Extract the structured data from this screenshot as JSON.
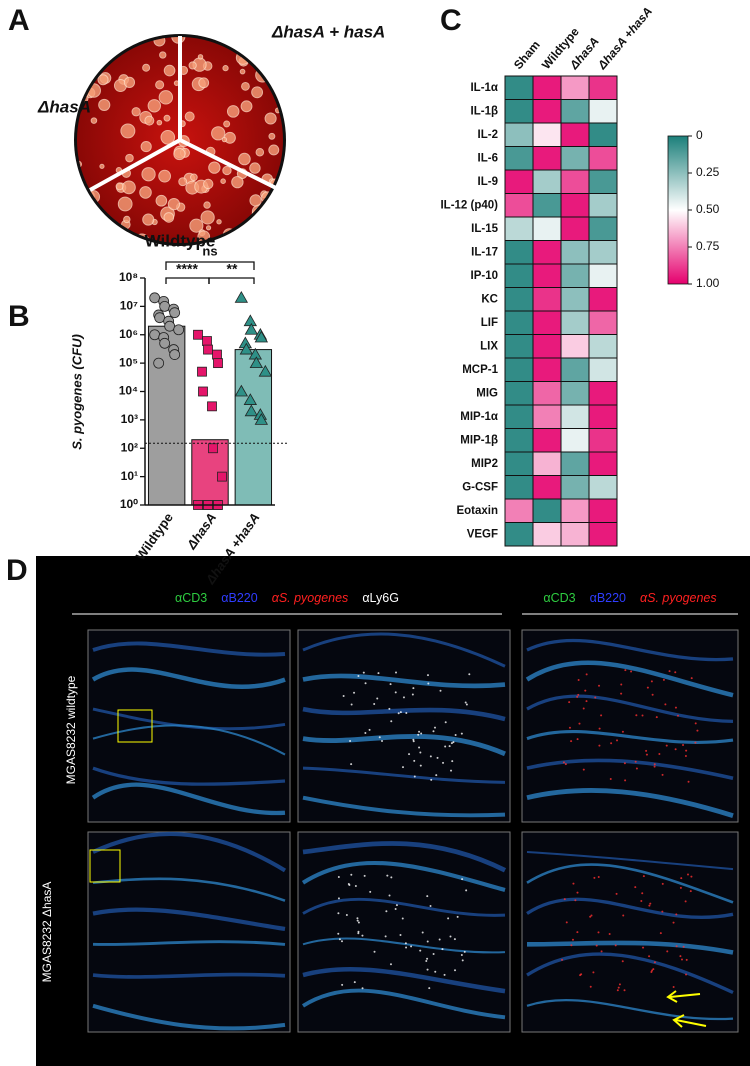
{
  "panels": {
    "a": "A",
    "b": "B",
    "c": "C",
    "d": "D"
  },
  "plate": {
    "labels": [
      "ΔhasA",
      "ΔhasA + hasA",
      "Wildtype"
    ]
  },
  "chart_data": [
    {
      "type": "bar",
      "ylabel": "S. pyogenes (CFU)",
      "categories": [
        "Wildtype",
        "ΔhasA",
        "ΔhasA +hasA"
      ],
      "values": [
        2000000,
        200,
        300000
      ],
      "colors": [
        "#9e9e9e",
        "#e8437f",
        "#7fbcb6"
      ],
      "point_colors": [
        "#9a9a9a",
        "#e5156a",
        "#2e9087"
      ],
      "markers": [
        "circle",
        "square",
        "triangle"
      ],
      "points": [
        [
          20000000,
          15000000,
          10000000,
          8000000,
          6000000,
          5000000,
          4000000,
          3000000,
          2000000,
          1500000,
          1000000,
          800000,
          500000,
          300000,
          200000,
          100000
        ],
        [
          1000000,
          600000,
          300000,
          200000,
          100000,
          50000,
          10000,
          3000,
          100,
          10,
          1,
          1,
          1,
          1,
          1
        ],
        [
          20000000,
          3000000,
          1500000,
          1000000,
          800000,
          500000,
          300000,
          200000,
          100000,
          50000,
          10000,
          5000,
          2000,
          1500,
          1000
        ]
      ],
      "threshold": 150,
      "log_scale": true,
      "ylim": [
        1,
        100000000
      ],
      "yticks": [
        {
          "value": 1,
          "label": "10⁰"
        },
        {
          "value": 10,
          "label": "10¹"
        },
        {
          "value": 100,
          "label": "10²"
        },
        {
          "value": 1000,
          "label": "10³"
        },
        {
          "value": 10000,
          "label": "10⁴"
        },
        {
          "value": 100000,
          "label": "10⁵"
        },
        {
          "value": 1000000,
          "label": "10⁶"
        },
        {
          "value": 10000000,
          "label": "10⁷"
        },
        {
          "value": 100000000,
          "label": "10⁸"
        }
      ],
      "annotations": [
        "ns",
        "****",
        "**"
      ]
    },
    {
      "type": "heatmap",
      "columns": [
        "Sham",
        "Wildtype",
        "ΔhasA",
        "ΔhasA +hasA"
      ],
      "rows": [
        "IL-1α",
        "IL-1β",
        "IL-2",
        "IL-6",
        "IL-9",
        "IL-12 (p40)",
        "IL-15",
        "IL-17",
        "IP-10",
        "KC",
        "LIF",
        "LIX",
        "MCP-1",
        "MIG",
        "MIP-1α",
        "MIP-1β",
        "MIP2",
        "G-CSF",
        "Eotaxin",
        "VEGF"
      ],
      "values": [
        [
          0.05,
          0.95,
          0.7,
          0.9
        ],
        [
          0.05,
          0.95,
          0.15,
          0.45
        ],
        [
          0.25,
          0.55,
          0.95,
          0.05
        ],
        [
          0.1,
          0.95,
          0.2,
          0.85
        ],
        [
          0.95,
          0.3,
          0.85,
          0.1
        ],
        [
          0.85,
          0.1,
          0.95,
          0.3
        ],
        [
          0.35,
          0.45,
          0.95,
          0.1
        ],
        [
          0.05,
          0.95,
          0.25,
          0.3
        ],
        [
          0.05,
          0.95,
          0.2,
          0.45
        ],
        [
          0.05,
          0.9,
          0.25,
          0.95
        ],
        [
          0.05,
          0.95,
          0.3,
          0.8
        ],
        [
          0.05,
          0.95,
          0.6,
          0.35
        ],
        [
          0.05,
          0.95,
          0.15,
          0.4
        ],
        [
          0.05,
          0.8,
          0.2,
          0.95
        ],
        [
          0.05,
          0.75,
          0.4,
          0.95
        ],
        [
          0.05,
          0.95,
          0.45,
          0.9
        ],
        [
          0.05,
          0.65,
          0.15,
          0.95
        ],
        [
          0.05,
          0.95,
          0.2,
          0.35
        ],
        [
          0.75,
          0.05,
          0.7,
          0.95
        ],
        [
          0.05,
          0.6,
          0.65,
          0.95
        ]
      ],
      "colorscale": [
        "#1b7f7a",
        "#ffffff",
        "#e5006d"
      ],
      "clim": [
        0,
        1
      ],
      "cticks": [
        0,
        0.25,
        {
          "value": 0.5,
          "label": "0.50"
        },
        0.75,
        {
          "value": 1,
          "label": "1.00"
        }
      ]
    }
  ],
  "microscopy": {
    "legend_left": [
      "αCD3",
      "αB220",
      "αS. pyogenes",
      "αLy6G"
    ],
    "legend_right": [
      "αCD3",
      "αB220",
      "αS. pyogenes"
    ],
    "legend_colors": [
      "#2ecc40",
      "#2f3dff",
      "#ff2020",
      "#ffffff"
    ],
    "rows": [
      "MGAS8232 wildtype",
      "MGAS8232 ΔhasA"
    ]
  }
}
